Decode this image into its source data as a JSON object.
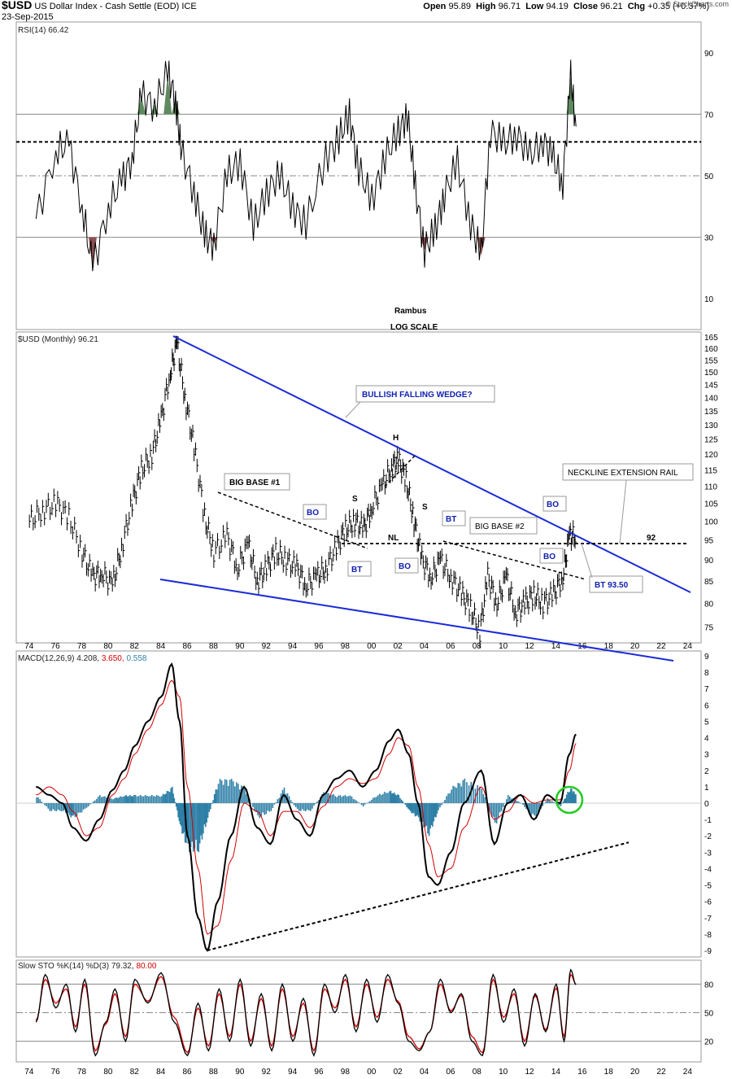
{
  "header": {
    "symbol": "$USD",
    "name": "US Dollar Index - Cash Settle (EOD)",
    "exchange": "ICE",
    "date": "23-Sep-2015",
    "open_label": "Open",
    "open": "95.89",
    "high_label": "High",
    "high": "96.71",
    "low_label": "Low",
    "low": "94.19",
    "close_label": "Close",
    "close": "96.21",
    "chg_label": "Chg",
    "chg": "+0.35 (+0.37%)",
    "watermark": "© StockCharts.com"
  },
  "colors": {
    "price_bar": "#000000",
    "wedge_line": "#1c2bd8",
    "rsi_overbought_fill": "#5f8a5f",
    "rsi_oversold_fill": "#8a5050",
    "macd_line": "#000000",
    "signal_line": "#d40000",
    "histogram": "#2d7fa6",
    "circle": "#22cc22",
    "annotation_blue": "#1020b0"
  },
  "chart_data": [
    {
      "type": "line",
      "panel": "RSI",
      "label": "RSI(14) 66.42",
      "yticks": [
        "90",
        "70",
        "50",
        "30",
        "10"
      ],
      "ylim": [
        0,
        100
      ],
      "levels": [
        70,
        50,
        30
      ],
      "dotted_level": 61,
      "x": [
        1974.5,
        1976,
        1977,
        1978,
        1978.8,
        1980,
        1981,
        1981.8,
        1982.5,
        1983.5,
        1984.5,
        1985.1,
        1985.5,
        1986.5,
        1987.3,
        1988,
        1989,
        1990,
        1991,
        1992,
        1993,
        1994,
        1995,
        1996.5,
        1997.5,
        1998.3,
        1999,
        2000,
        2001,
        2002,
        2002.7,
        2003.3,
        2004,
        2004.8,
        2005.5,
        2006.5,
        2007.5,
        2008.3,
        2009,
        2010,
        2011,
        2012,
        2013,
        2013.8,
        2014.5,
        2015.1,
        2015.5
      ],
      "values": [
        36,
        58,
        60,
        40,
        20,
        40,
        48,
        56,
        76,
        73,
        83,
        75,
        58,
        45,
        30,
        28,
        50,
        55,
        33,
        45,
        50,
        40,
        34,
        56,
        62,
        70,
        52,
        42,
        56,
        64,
        70,
        46,
        26,
        32,
        44,
        54,
        35,
        24,
        65,
        60,
        64,
        56,
        62,
        55,
        48,
        82,
        66
      ],
      "annotations": [
        "Rambus",
        "LOG SCALE"
      ]
    },
    {
      "type": "bar",
      "panel": "Price",
      "label": "$USD (Monthly) 96.21",
      "scale": "log",
      "yticks": [
        "165",
        "160",
        "155",
        "150",
        "145",
        "140",
        "135",
        "130",
        "125",
        "120",
        "115",
        "110",
        "105",
        "100",
        "95",
        "90",
        "85",
        "80",
        "75"
      ],
      "xticks": [
        "74",
        "76",
        "78",
        "80",
        "82",
        "84",
        "86",
        "88",
        "90",
        "92",
        "94",
        "96",
        "98",
        "00",
        "02",
        "04",
        "06",
        "08",
        "10",
        "12",
        "14",
        "16",
        "18",
        "20",
        "22",
        "24"
      ],
      "x": [
        1974,
        1975,
        1976,
        1977,
        1978,
        1978.8,
        1979.5,
        1980.3,
        1981,
        1981.8,
        1982.5,
        1983.3,
        1984,
        1984.7,
        1985.2,
        1985.8,
        1986.5,
        1987.3,
        1988,
        1989,
        1989.8,
        1990.6,
        1991.3,
        1992,
        1992.7,
        1993.5,
        1994.3,
        1995,
        1995.8,
        1996.5,
        1997.3,
        1998,
        1998.7,
        1999.4,
        2000,
        2000.8,
        2001.5,
        2002,
        2002.6,
        2003.2,
        2003.8,
        2004.5,
        2005.2,
        2006,
        2006.8,
        2007.5,
        2008.2,
        2008.8,
        2009.5,
        2010.2,
        2010.9,
        2011.6,
        2012.3,
        2013,
        2013.8,
        2014.5,
        2015,
        2015.5
      ],
      "values": [
        100,
        103,
        105,
        101,
        92,
        86,
        87,
        84,
        93,
        105,
        115,
        120,
        132,
        150,
        162,
        140,
        122,
        101,
        92,
        96,
        88,
        94,
        85,
        88,
        92,
        90,
        88,
        84,
        86,
        88,
        93,
        98,
        100,
        98,
        104,
        110,
        116,
        118,
        112,
        100,
        90,
        86,
        90,
        86,
        82,
        79,
        74,
        86,
        80,
        86,
        78,
        80,
        82,
        80,
        82,
        86,
        96,
        96.21
      ],
      "annotations": [
        "BULLISH FALLING WEDGE?",
        "H",
        "S",
        "S",
        "NL",
        "BIG BASE #1",
        "BIG BASE #2",
        "NECKLINE EXTENSION RAIL",
        "92",
        "BO",
        "BT",
        "BO",
        "BT",
        "BO",
        "BO",
        "BT 93.50"
      ]
    },
    {
      "type": "line",
      "panel": "MACD",
      "label": "MACD(12,26,9)",
      "label_values": [
        "4.208",
        "3.650",
        "0.558"
      ],
      "yticks": [
        "9",
        "8",
        "7",
        "6",
        "5",
        "4",
        "3",
        "2",
        "1",
        "0",
        "-1",
        "-2",
        "-3",
        "-4",
        "-5",
        "-6",
        "-7",
        "-8",
        "-9"
      ],
      "ylim": [
        -9,
        9
      ],
      "x": [
        1974.5,
        1975.5,
        1976.5,
        1977.3,
        1978.3,
        1979.3,
        1980.3,
        1981.2,
        1982,
        1983,
        1984,
        1984.8,
        1985.4,
        1986,
        1986.8,
        1987.5,
        1988.3,
        1989.3,
        1990.3,
        1991.3,
        1992.3,
        1993.3,
        1994.3,
        1995.3,
        1996.3,
        1997.3,
        1998.3,
        1999.3,
        2000.3,
        2001.3,
        2002,
        2002.8,
        2003.5,
        2004.3,
        2005,
        2006,
        2007,
        2008.3,
        2009.3,
        2010.3,
        2011.3,
        2012.3,
        2013.3,
        2014.3,
        2015,
        2015.5
      ],
      "series": [
        {
          "name": "MACD",
          "values": [
            1.0,
            0.5,
            0.0,
            -1.5,
            -2.3,
            -1.0,
            0.8,
            2.0,
            3.5,
            5.0,
            6.5,
            8.5,
            5.0,
            -2.0,
            -7.0,
            -9.0,
            -6.0,
            -2.0,
            1.0,
            -1.5,
            -2.5,
            0.5,
            -1.0,
            -2.0,
            0.5,
            1.5,
            2.0,
            1.0,
            2.0,
            3.8,
            4.5,
            3.0,
            0.0,
            -4.5,
            -5.0,
            -3.0,
            0.0,
            2.0,
            -2.5,
            0.0,
            0.5,
            -1.0,
            0.5,
            0.0,
            3.0,
            4.208
          ]
        },
        {
          "name": "Signal",
          "values": [
            0.5,
            1.0,
            0.5,
            -0.5,
            -2.0,
            -1.5,
            0.5,
            1.5,
            3.0,
            4.5,
            6.0,
            7.5,
            6.5,
            1.0,
            -4.0,
            -8.0,
            -7.5,
            -3.5,
            0.0,
            -0.5,
            -2.0,
            -0.5,
            -0.5,
            -1.5,
            -0.2,
            1.0,
            1.5,
            1.2,
            1.5,
            3.0,
            4.0,
            3.5,
            1.0,
            -2.5,
            -4.5,
            -4.0,
            -1.5,
            1.0,
            -1.0,
            -0.5,
            0.5,
            0.0,
            0.2,
            0.2,
            2.0,
            3.65
          ]
        }
      ],
      "histogram": {
        "name": "Histogram",
        "values": [
          0.5,
          -0.5,
          -0.5,
          -1.0,
          -0.3,
          0.5,
          0.3,
          0.5,
          0.5,
          0.5,
          0.5,
          1.0,
          -1.5,
          -3.0,
          -3.0,
          -1.0,
          1.5,
          1.5,
          1.0,
          -1.0,
          -0.5,
          1.0,
          -0.5,
          -0.5,
          0.7,
          0.5,
          0.5,
          -0.2,
          0.5,
          0.8,
          0.5,
          -0.5,
          -1.0,
          -2.0,
          -0.5,
          1.0,
          1.5,
          1.0,
          -1.5,
          0.5,
          0.0,
          -1.0,
          0.3,
          -0.2,
          1.0,
          0.558
        ]
      },
      "trendline": [
        [
          1987.5,
          -9.0
        ],
        [
          2019.5,
          -2.4
        ]
      ]
    },
    {
      "type": "line",
      "panel": "Slow STO",
      "label": "Slow STO %K(14) %D(3)",
      "label_values": [
        "79.32",
        "80.00"
      ],
      "yticks": [
        "80",
        "50",
        "20"
      ],
      "ylim": [
        0,
        100
      ],
      "levels": [
        80,
        50,
        20
      ],
      "xticks": [
        "74",
        "76",
        "78",
        "80",
        "82",
        "84",
        "86",
        "88",
        "90",
        "92",
        "94",
        "96",
        "98",
        "00",
        "02",
        "04",
        "06",
        "08",
        "10",
        "12",
        "14",
        "16",
        "18",
        "20",
        "22",
        "24"
      ],
      "x": [
        1974.5,
        1975.2,
        1976,
        1976.8,
        1977.5,
        1978.2,
        1979,
        1979.8,
        1980.5,
        1981.3,
        1982,
        1983,
        1984,
        1985,
        1986,
        1986.8,
        1987.6,
        1988.4,
        1989.2,
        1990,
        1990.8,
        1991.6,
        1992.4,
        1993.2,
        1994,
        1994.8,
        1995.6,
        1996.4,
        1997.2,
        1998,
        1998.8,
        1999.6,
        2000.4,
        2001.2,
        2002,
        2002.8,
        2003.6,
        2004.4,
        2005.2,
        2006,
        2006.8,
        2007.6,
        2008.4,
        2009.2,
        2010,
        2010.8,
        2011.6,
        2012.4,
        2013.2,
        2014,
        2014.6,
        2015.1,
        2015.5
      ],
      "series": [
        {
          "name": "%K",
          "values": [
            40,
            90,
            55,
            80,
            30,
            85,
            5,
            40,
            75,
            20,
            85,
            60,
            92,
            40,
            5,
            60,
            10,
            75,
            20,
            85,
            15,
            70,
            10,
            80,
            20,
            65,
            5,
            80,
            50,
            90,
            30,
            85,
            40,
            90,
            60,
            20,
            10,
            30,
            85,
            50,
            70,
            20,
            5,
            90,
            40,
            75,
            15,
            70,
            30,
            80,
            20,
            95,
            79.32
          ]
        },
        {
          "name": "%D",
          "values": [
            42,
            85,
            60,
            75,
            35,
            80,
            10,
            38,
            70,
            25,
            80,
            62,
            88,
            45,
            8,
            55,
            15,
            70,
            25,
            80,
            20,
            65,
            15,
            75,
            25,
            60,
            10,
            75,
            55,
            85,
            35,
            80,
            45,
            85,
            62,
            25,
            12,
            30,
            80,
            52,
            68,
            25,
            8,
            85,
            45,
            70,
            20,
            68,
            32,
            76,
            25,
            90,
            80.0
          ]
        }
      ]
    }
  ]
}
